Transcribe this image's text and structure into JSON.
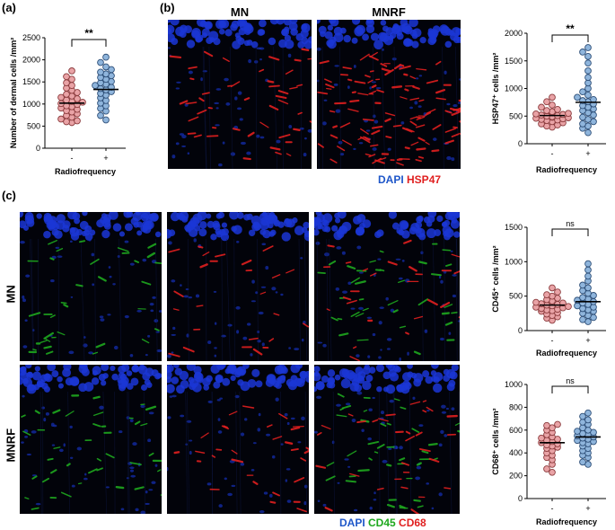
{
  "labels": {
    "a": "(a)",
    "b": "(b)",
    "c": "(c)"
  },
  "titles": {
    "mn": "MN",
    "mnrf": "MNRF"
  },
  "legend_b": {
    "dapi": "DAPI",
    "marker": "HSP47"
  },
  "legend_c": {
    "dapi": "DAPI",
    "cd45": "CD45",
    "cd68": "CD68"
  },
  "colors": {
    "dapi": "#1f57c9",
    "hsp47": "#e01f1f",
    "cd45": "#1ea81e",
    "cd68": "#e01f1f",
    "pink_fill": "#e9a3a6",
    "pink_edge": "#8c3c3e",
    "blue_fill": "#8fb5dc",
    "blue_edge": "#2e4f78"
  },
  "chart_data": [
    {
      "id": "dermal",
      "type": "scatter",
      "ylabel": "Number of dermal cells /mm²",
      "xlabel": "Radiofrequency",
      "categories": [
        "-",
        "+"
      ],
      "ylim": [
        0,
        2500
      ],
      "yticks": [
        "0",
        "500",
        "1000",
        "1500",
        "2000",
        "2500"
      ],
      "significance": "**",
      "means": [
        1020,
        1330
      ],
      "series": [
        {
          "values": [
            1750,
            1620,
            1560,
            1480,
            1420,
            1360,
            1310,
            1260,
            1220,
            1180,
            1150,
            1120,
            1090,
            1060,
            1040,
            1010,
            990,
            960,
            940,
            910,
            880,
            850,
            820,
            780,
            740,
            700,
            660,
            620,
            600,
            580
          ]
        },
        {
          "values": [
            2060,
            1940,
            1840,
            1780,
            1720,
            1680,
            1640,
            1600,
            1560,
            1510,
            1480,
            1450,
            1420,
            1380,
            1350,
            1320,
            1280,
            1240,
            1200,
            1140,
            1080,
            1020,
            960,
            900,
            840,
            740,
            640
          ]
        }
      ]
    },
    {
      "id": "hsp47",
      "type": "scatter",
      "ylabel": "HSP47⁺ cells /mm²",
      "xlabel": "Radiofrequency",
      "categories": [
        "-",
        "+"
      ],
      "ylim": [
        0,
        2000
      ],
      "yticks": [
        "0",
        "500",
        "1000",
        "1500",
        "2000"
      ],
      "significance": "**",
      "means": [
        510,
        750
      ],
      "series": [
        {
          "values": [
            840,
            760,
            700,
            660,
            620,
            600,
            580,
            560,
            550,
            540,
            530,
            520,
            510,
            500,
            490,
            480,
            470,
            460,
            450,
            440,
            430,
            420,
            400,
            380,
            360,
            340,
            320,
            300
          ]
        },
        {
          "values": [
            1740,
            1660,
            1580,
            1460,
            1320,
            1200,
            1100,
            1000,
            940,
            880,
            840,
            800,
            780,
            760,
            720,
            690,
            660,
            630,
            600,
            560,
            520,
            480,
            440,
            400,
            360,
            320,
            280,
            200
          ]
        }
      ]
    },
    {
      "id": "cd45",
      "type": "scatter",
      "ylabel": "CD45⁺ cells /mm²",
      "xlabel": "Radiofrequency",
      "categories": [
        "-",
        "+"
      ],
      "ylim": [
        0,
        1500
      ],
      "yticks": [
        "0",
        "500",
        "1000",
        "1500"
      ],
      "significance": "ns",
      "means": [
        370,
        420
      ],
      "series": [
        {
          "values": [
            620,
            560,
            520,
            500,
            470,
            450,
            430,
            410,
            400,
            390,
            380,
            370,
            360,
            350,
            340,
            330,
            320,
            310,
            300,
            290,
            280,
            260,
            240,
            220,
            200,
            180,
            150
          ]
        },
        {
          "values": [
            970,
            880,
            790,
            720,
            660,
            620,
            580,
            540,
            510,
            480,
            460,
            440,
            420,
            400,
            380,
            360,
            340,
            320,
            300,
            280,
            250,
            220,
            190,
            160,
            130
          ]
        }
      ]
    },
    {
      "id": "cd68",
      "type": "scatter",
      "ylabel": "CD68⁺ cells /mm²",
      "xlabel": "Radiofrequency",
      "categories": [
        "-",
        "+"
      ],
      "ylim": [
        0,
        1000
      ],
      "yticks": [
        "0",
        "200",
        "400",
        "600",
        "800",
        "1000"
      ],
      "significance": "ns",
      "means": [
        490,
        540
      ],
      "series": [
        {
          "values": [
            650,
            640,
            620,
            600,
            580,
            560,
            540,
            530,
            520,
            510,
            500,
            490,
            480,
            470,
            460,
            450,
            440,
            420,
            400,
            380,
            360,
            340,
            300,
            260,
            230
          ]
        },
        {
          "values": [
            750,
            720,
            690,
            670,
            650,
            620,
            600,
            590,
            580,
            570,
            560,
            550,
            540,
            530,
            520,
            510,
            500,
            490,
            480,
            460,
            440,
            420,
            400,
            380,
            360,
            320,
            300
          ]
        }
      ]
    }
  ]
}
